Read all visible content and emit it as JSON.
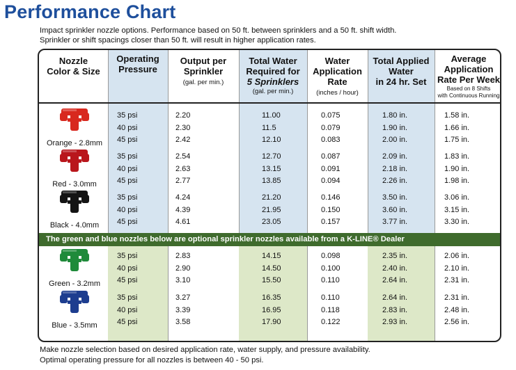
{
  "title": "Performance Chart",
  "intro": [
    "Impact sprinkler nozzle options. Performance based on 50 ft. between sprinklers and a 50 ft. shift width.",
    "Sprinkler or shift spacings closer than 50 ft. will result in higher application rates."
  ],
  "headers": {
    "nozzle": "Nozzle\nColor & Size",
    "pressure": "Operating\nPressure",
    "output": "Output per\nSprinkler",
    "output_sub": "(gal. per min.)",
    "total_water": "Total Water\nRequired for",
    "total_water_em": "5 Sprinklers",
    "total_water_sub": "(gal. per min.)",
    "rate": "Water\nApplication\nRate",
    "rate_sub": "(inches / hour)",
    "applied": "Total Applied\nWater\nin 24 hr. Set",
    "weekly": "Average\nApplication\nRate Per Week",
    "weekly_sub": "Based on 8 Shifts\nwith Continuous Running"
  },
  "band_text": "The green and blue nozzles below are optional sprinkler nozzles available from a K-LINE® Dealer",
  "nozzles": [
    {
      "label": "Orange - 2.8mm",
      "color": "#d8281e",
      "rows": [
        [
          "35 psi",
          "2.20",
          "11.00",
          "0.075",
          "1.80 in.",
          "1.58 in."
        ],
        [
          "40 psi",
          "2.30",
          "11.5",
          "0.079",
          "1.90 in.",
          "1.66 in."
        ],
        [
          "45 psi",
          "2.42",
          "12.10",
          "0.083",
          "2.00 in.",
          "1.75 in."
        ]
      ]
    },
    {
      "label": "Red - 3.0mm",
      "color": "#b9161c",
      "rows": [
        [
          "35 psi",
          "2.54",
          "12.70",
          "0.087",
          "2.09 in.",
          "1.83 in."
        ],
        [
          "40 psi",
          "2.63",
          "13.15",
          "0.091",
          "2.18 in.",
          "1.90 in."
        ],
        [
          "45 psi",
          "2.77",
          "13.85",
          "0.094",
          "2.26 in.",
          "1.98 in."
        ]
      ]
    },
    {
      "label": "Black - 4.0mm",
      "color": "#141414",
      "rows": [
        [
          "35 psi",
          "4.24",
          "21.20",
          "0.146",
          "3.50 in.",
          "3.06 in."
        ],
        [
          "40 psi",
          "4.39",
          "21.95",
          "0.150",
          "3.60 in.",
          "3.15 in."
        ],
        [
          "45 psi",
          "4.61",
          "23.05",
          "0.157",
          "3.77 in.",
          "3.30 in."
        ]
      ]
    },
    {
      "label": "Green - 3.2mm",
      "color": "#1f8a3a",
      "rows": [
        [
          "35 psi",
          "2.83",
          "14.15",
          "0.098",
          "2.35 in.",
          "2.06 in."
        ],
        [
          "40 psi",
          "2.90",
          "14.50",
          "0.100",
          "2.40 in.",
          "2.10 in."
        ],
        [
          "45 psi",
          "3.10",
          "15.50",
          "0.110",
          "2.64 in.",
          "2.31 in."
        ]
      ]
    },
    {
      "label": "Blue - 3.5mm",
      "color": "#1d3d8f",
      "rows": [
        [
          "35 psi",
          "3.27",
          "16.35",
          "0.110",
          "2.64 in.",
          "2.31 in."
        ],
        [
          "40 psi",
          "3.39",
          "16.95",
          "0.118",
          "2.83 in.",
          "2.48 in."
        ],
        [
          "45 psi",
          "3.58",
          "17.90",
          "0.122",
          "2.93 in.",
          "2.56 in."
        ]
      ]
    }
  ],
  "footer": [
    "Make nozzle selection based on desired application rate, water supply, and pressure availability.",
    "Optimal operating pressure for all nozzles is between 40 - 50 psi."
  ]
}
